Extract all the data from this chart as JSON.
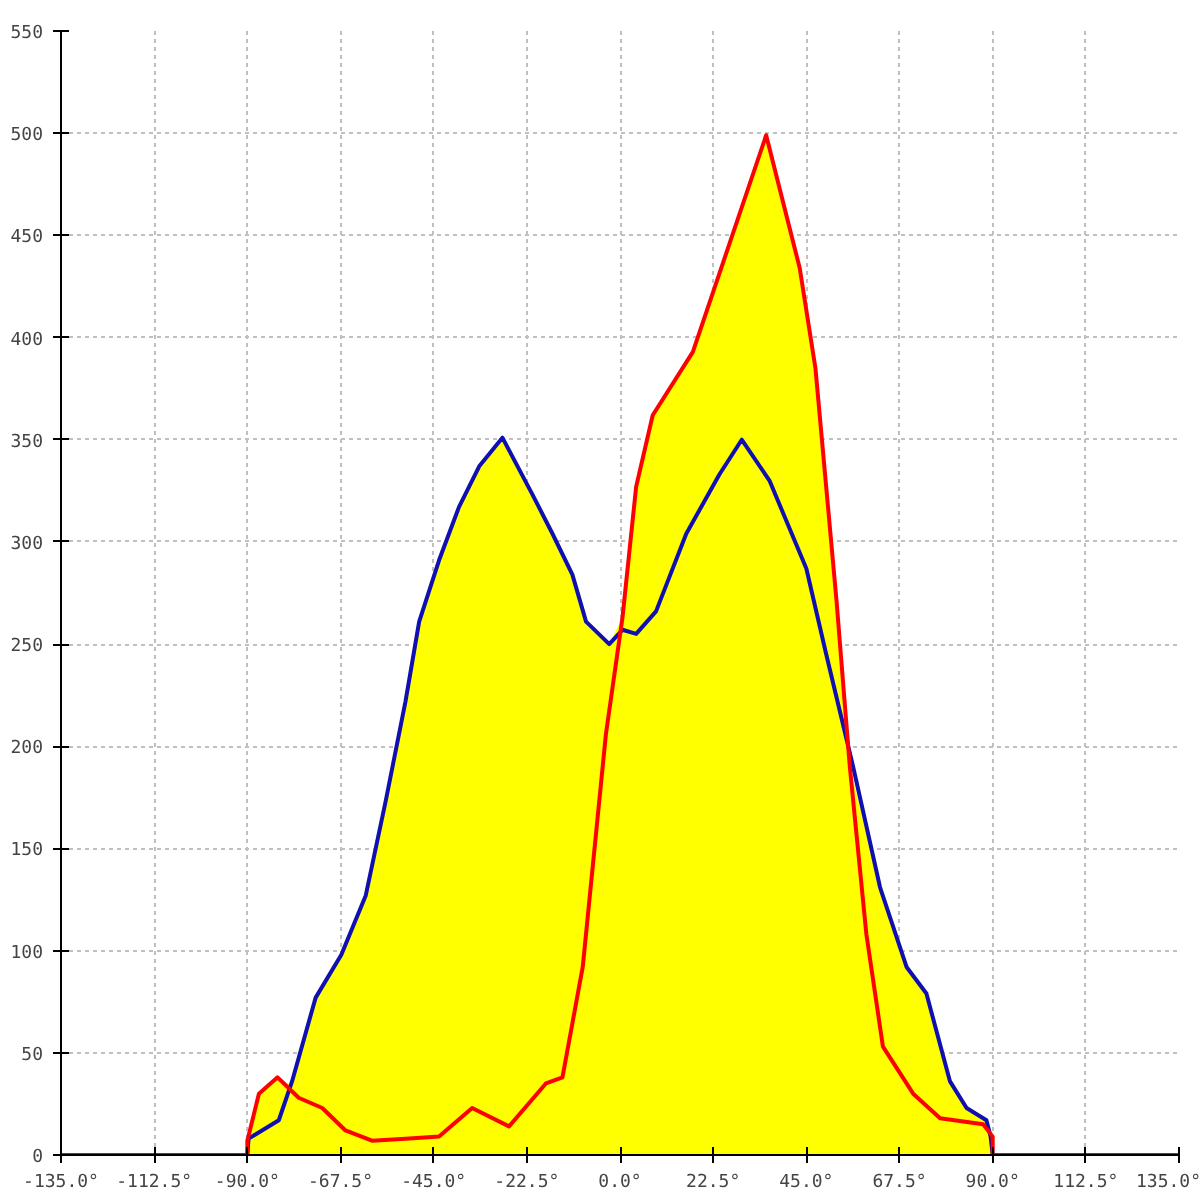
{
  "chart_data": {
    "type": "area",
    "xlim": [
      -135,
      135
    ],
    "ylim": [
      0,
      550
    ],
    "xticks": [
      {
        "value": -135,
        "label": "-135.0°"
      },
      {
        "value": -112.5,
        "label": "-112.5°"
      },
      {
        "value": -90,
        "label": "-90.0°"
      },
      {
        "value": -67.5,
        "label": "-67.5°"
      },
      {
        "value": -45,
        "label": "-45.0°"
      },
      {
        "value": -22.5,
        "label": "-22.5°"
      },
      {
        "value": 0,
        "label": "0.0°"
      },
      {
        "value": 22.5,
        "label": "22.5°"
      },
      {
        "value": 45,
        "label": "45.0°"
      },
      {
        "value": 67.5,
        "label": "67.5°"
      },
      {
        "value": 90,
        "label": "90.0°"
      },
      {
        "value": 112.5,
        "label": "112.5°"
      },
      {
        "value": 135,
        "label": "135.0°"
      }
    ],
    "yticks": [
      0,
      50,
      100,
      150,
      200,
      250,
      300,
      350,
      400,
      450,
      500,
      550
    ],
    "grid": true,
    "series": [
      {
        "color": "#ffff00",
        "x": [
          -90,
          -90,
          -87.2,
          -82.7,
          -79.5,
          -73.5,
          -67.3,
          -61.4,
          -56.6,
          -51.8,
          -48.5,
          -43.7,
          -38.9,
          -34,
          -28.4,
          -21.1,
          -16.3,
          -11.5,
          -8.2,
          -2.6,
          0.6,
          3.9,
          7.9,
          17.6,
          35.3,
          43.4,
          47.2,
          52.3,
          55.5,
          62.8,
          69.2,
          74,
          79.7,
          83.7,
          88.5,
          89.5,
          90
        ],
        "values": [
          0,
          7,
          30,
          38,
          34,
          77,
          98,
          127,
          173,
          222,
          261,
          291,
          317,
          337,
          351,
          323,
          304,
          284,
          261,
          250,
          263,
          327,
          362,
          393,
          499,
          434,
          385,
          271,
          190,
          131,
          92,
          79,
          36,
          23,
          17,
          9,
          0
        ]
      },
      {
        "type": "line",
        "color": "#1010b0",
        "x": [
          -90,
          -89.7,
          -82.4,
          -79.2,
          -73.5,
          -67.3,
          -61.4,
          -56.6,
          -51.8,
          -48.5,
          -43.7,
          -38.9,
          -34,
          -28.4,
          -21.1,
          -16.3,
          -11.5,
          -8.2,
          -2.6,
          0.6,
          3.9,
          8.7,
          16,
          24,
          29.4,
          36.1,
          45,
          49.8,
          56.3,
          62.8,
          69.2,
          74,
          79.7,
          83.7,
          88.5,
          89.5,
          90
        ],
        "values": [
          0,
          8,
          17,
          36,
          77,
          98,
          127,
          173,
          222,
          261,
          291,
          317,
          337,
          351,
          323,
          304,
          284,
          261,
          250,
          257,
          255,
          266,
          304,
          333,
          350,
          330,
          287,
          245,
          190,
          131,
          92,
          79,
          36,
          23,
          17,
          9,
          0
        ]
      },
      {
        "type": "line",
        "color": "#ff0000",
        "x": [
          -135,
          -90,
          -90,
          -87.2,
          -82.7,
          -77.6,
          -71.9,
          -66.3,
          -59.9,
          -51.8,
          -43.7,
          -35.7,
          -26.8,
          -17.9,
          -13.9,
          -9,
          -3.4,
          0.6,
          3.9,
          7.9,
          17.6,
          35.3,
          43.4,
          47.2,
          52.3,
          55.5,
          59.5,
          63.5,
          70.8,
          77.3,
          87.7,
          90,
          90,
          135
        ],
        "values": [
          0,
          0,
          7,
          30,
          38,
          28,
          23,
          12,
          7,
          8,
          9,
          23,
          14,
          35,
          38,
          92,
          206,
          263,
          327,
          362,
          393,
          499,
          434,
          385,
          271,
          190,
          108,
          53,
          30,
          18,
          15,
          9,
          0,
          0
        ]
      }
    ]
  }
}
